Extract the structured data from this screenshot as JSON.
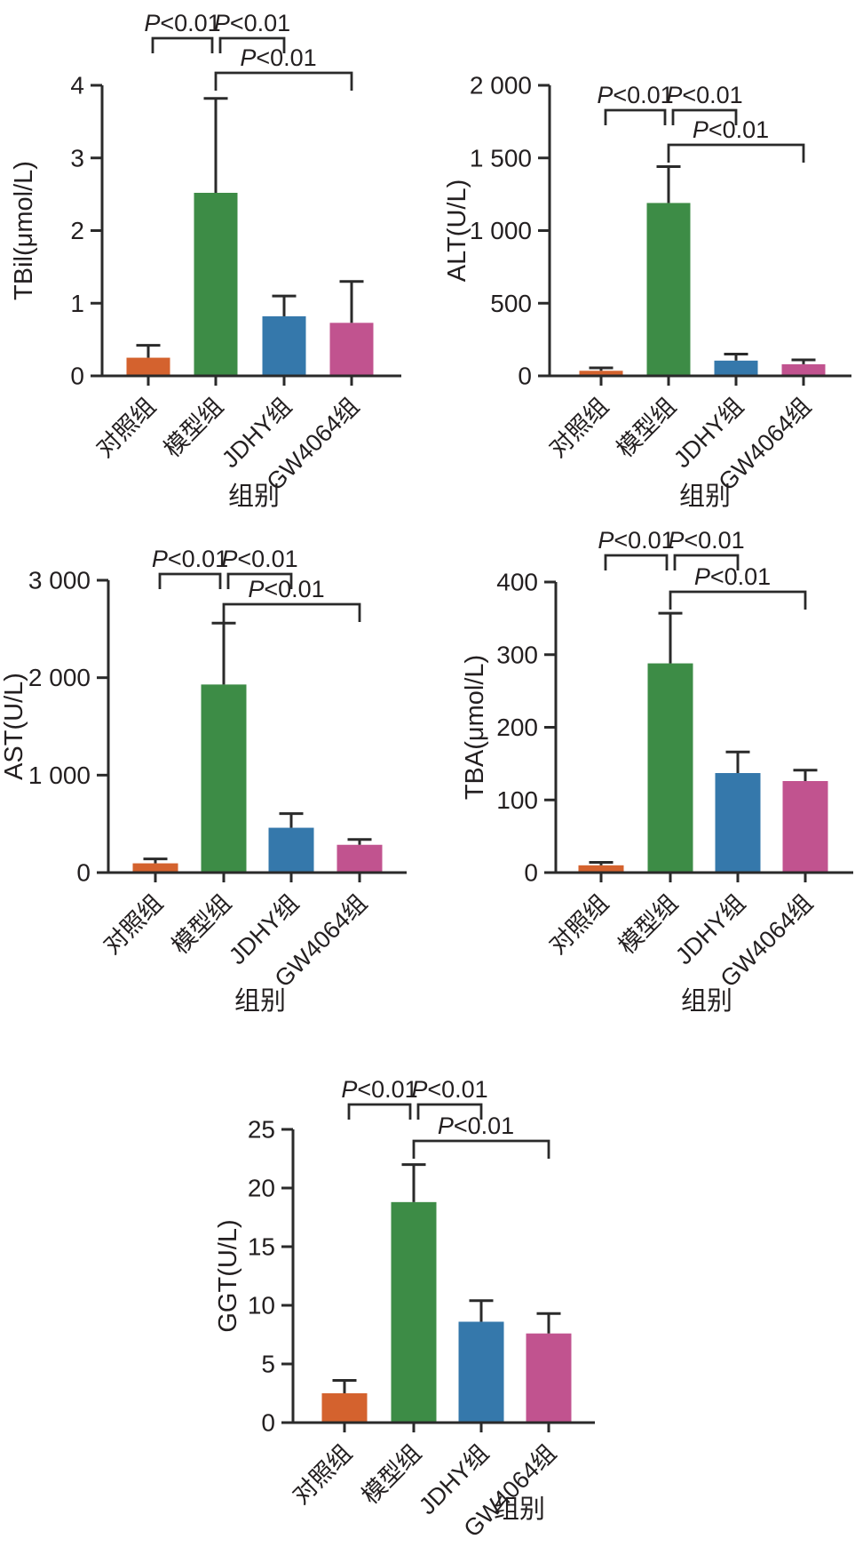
{
  "figure": {
    "background": "#ffffff",
    "axis_color": "#2a2a2a",
    "text_color": "#231f20",
    "bar_colors": [
      "#d4622e",
      "#3d8c46",
      "#3578ab",
      "#c1538f"
    ],
    "bar_color_names": [
      "orange",
      "green",
      "blue",
      "magenta"
    ]
  },
  "chart_data": [
    {
      "id": "tbil",
      "type": "bar",
      "title": "",
      "ylabel": "TBil(μmol/L)",
      "xlabel": "组别",
      "categories": [
        "对照组",
        "模型组",
        "JDHY组",
        "GW4064组"
      ],
      "values": [
        0.25,
        2.52,
        0.82,
        0.73
      ],
      "error_tops": [
        0.42,
        3.82,
        1.1,
        1.3
      ],
      "ylim": [
        0,
        4
      ],
      "ytick_values": [
        0,
        1,
        2,
        3,
        4
      ],
      "ytick_labels": [
        "0",
        "1",
        "2",
        "3",
        "4"
      ],
      "grid": false,
      "significance": [
        {
          "from": 0,
          "to": 1,
          "label": "P<0.01"
        },
        {
          "from": 1,
          "to": 2,
          "label": "P<0.01"
        },
        {
          "from": 1,
          "to": 3,
          "label": "P<0.01"
        }
      ]
    },
    {
      "id": "alt",
      "type": "bar",
      "title": "",
      "ylabel": "ALT(U/L)",
      "xlabel": "组别",
      "categories": [
        "对照组",
        "模型组",
        "JDHY组",
        "GW4064组"
      ],
      "values": [
        35,
        1190,
        105,
        80
      ],
      "error_tops": [
        55,
        1440,
        150,
        110
      ],
      "ylim": [
        0,
        2000
      ],
      "ytick_values": [
        0,
        500,
        1000,
        1500,
        2000
      ],
      "ytick_labels": [
        "0",
        "500",
        "1 000",
        "1 500",
        "2 000"
      ],
      "grid": false,
      "significance": [
        {
          "from": 0,
          "to": 1,
          "label": "P<0.01"
        },
        {
          "from": 1,
          "to": 2,
          "label": "P<0.01"
        },
        {
          "from": 1,
          "to": 3,
          "label": "P<0.01"
        }
      ]
    },
    {
      "id": "ast",
      "type": "bar",
      "title": "",
      "ylabel": "AST(U/L)",
      "xlabel": "组别",
      "categories": [
        "对照组",
        "模型组",
        "JDHY组",
        "GW4064组"
      ],
      "values": [
        95,
        1930,
        460,
        285
      ],
      "error_tops": [
        140,
        2560,
        605,
        340
      ],
      "ylim": [
        0,
        3000
      ],
      "ytick_values": [
        0,
        1000,
        2000,
        3000
      ],
      "ytick_labels": [
        "0",
        "1 000",
        "2 000",
        "3 000"
      ],
      "grid": false,
      "significance": [
        {
          "from": 0,
          "to": 1,
          "label": "P<0.01"
        },
        {
          "from": 1,
          "to": 2,
          "label": "P<0.01"
        },
        {
          "from": 1,
          "to": 3,
          "label": "P<0.01"
        }
      ]
    },
    {
      "id": "tba",
      "type": "bar",
      "title": "",
      "ylabel": "TBA(μmol/L)",
      "xlabel": "组别",
      "categories": [
        "对照组",
        "模型组",
        "JDHY组",
        "GW4064组"
      ],
      "values": [
        10,
        288,
        137,
        126
      ],
      "error_tops": [
        14,
        357,
        166,
        141
      ],
      "ylim": [
        0,
        400
      ],
      "ytick_values": [
        0,
        100,
        200,
        300,
        400
      ],
      "ytick_labels": [
        "0",
        "100",
        "200",
        "300",
        "400"
      ],
      "grid": false,
      "significance": [
        {
          "from": 0,
          "to": 1,
          "label": "P<0.01"
        },
        {
          "from": 1,
          "to": 2,
          "label": "P<0.01"
        },
        {
          "from": 1,
          "to": 3,
          "label": "P<0.01"
        }
      ]
    },
    {
      "id": "ggt",
      "type": "bar",
      "title": "",
      "ylabel": "GGT(U/L)",
      "xlabel": "组别",
      "categories": [
        "对照组",
        "模型组",
        "JDHY组",
        "GW4064组"
      ],
      "values": [
        2.5,
        18.8,
        8.6,
        7.6
      ],
      "error_tops": [
        3.6,
        22.0,
        10.4,
        9.3
      ],
      "ylim": [
        0,
        25
      ],
      "ytick_values": [
        0,
        5,
        10,
        15,
        20,
        25
      ],
      "ytick_labels": [
        "0",
        "5",
        "10",
        "15",
        "20",
        "25"
      ],
      "grid": false,
      "significance": [
        {
          "from": 0,
          "to": 1,
          "label": "P<0.01"
        },
        {
          "from": 1,
          "to": 2,
          "label": "P<0.01"
        },
        {
          "from": 1,
          "to": 3,
          "label": "P<0.01"
        }
      ]
    }
  ]
}
